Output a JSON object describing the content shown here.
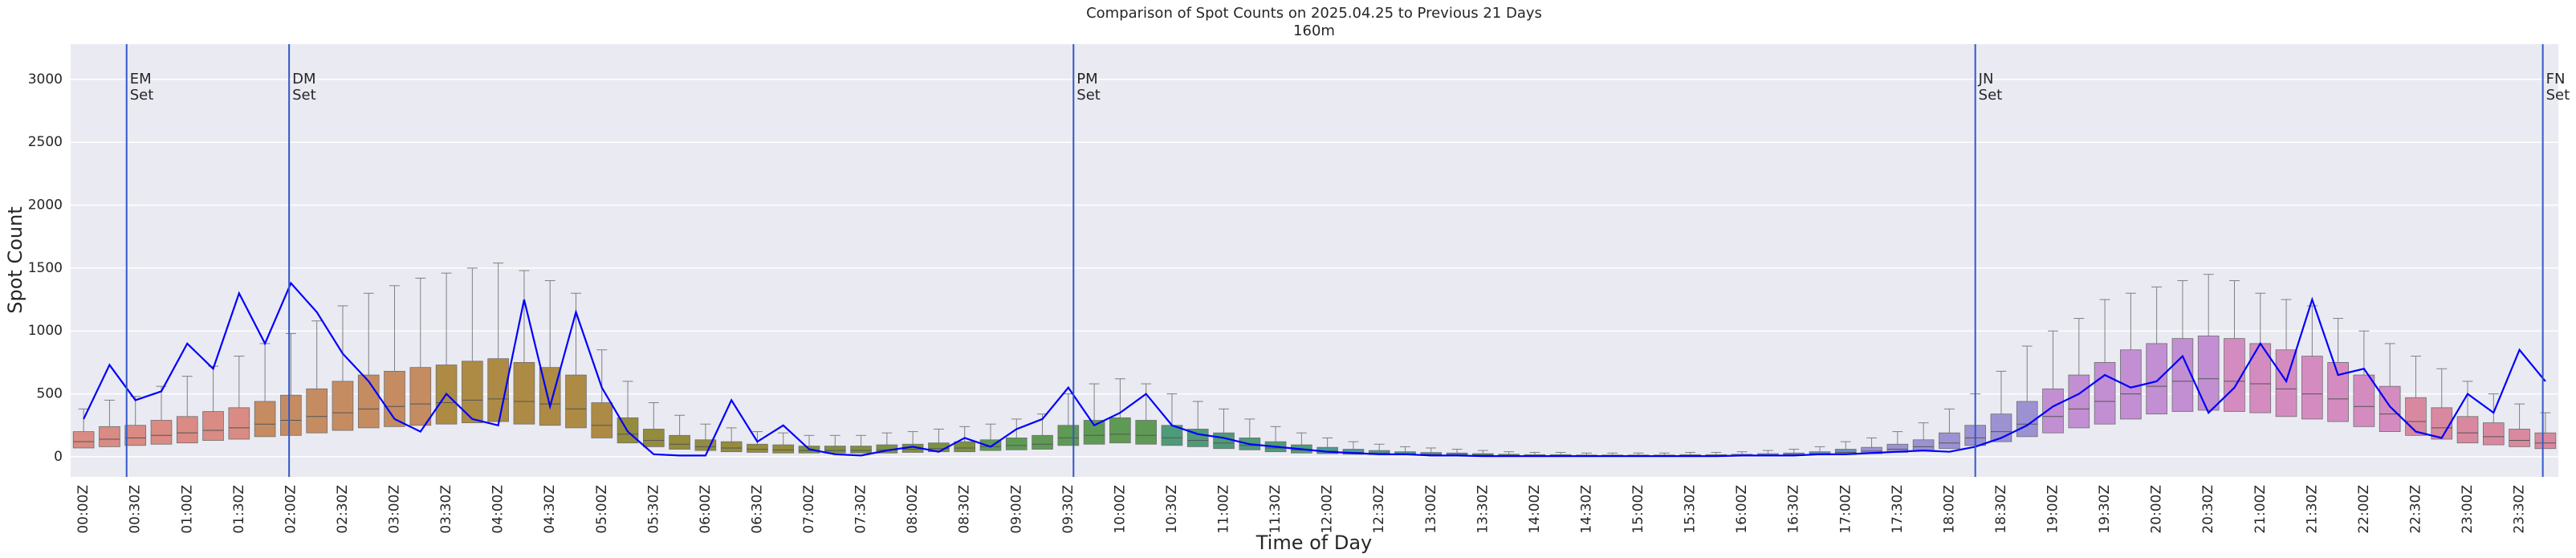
{
  "chart_data": {
    "type": "box",
    "title": "Comparison of Spot Counts on 2025.04.25 to Previous 21 Days",
    "subtitle": "160m",
    "xlabel": "Time of Day",
    "ylabel": "Spot Count",
    "categories": [
      "00:00Z",
      null,
      "00:30Z",
      null,
      "01:00Z",
      null,
      "01:30Z",
      null,
      "02:00Z",
      null,
      "02:30Z",
      null,
      "03:00Z",
      null,
      "03:30Z",
      null,
      "04:00Z",
      null,
      "04:30Z",
      null,
      "05:00Z",
      null,
      "05:30Z",
      null,
      "06:00Z",
      null,
      "06:30Z",
      null,
      "07:00Z",
      null,
      "07:30Z",
      null,
      "08:00Z",
      null,
      "08:30Z",
      null,
      "09:00Z",
      null,
      "09:30Z",
      null,
      "10:00Z",
      null,
      "10:30Z",
      null,
      "11:00Z",
      null,
      "11:30Z",
      null,
      "12:00Z",
      null,
      "12:30Z",
      null,
      "13:00Z",
      null,
      "13:30Z",
      null,
      "14:00Z",
      null,
      "14:30Z",
      null,
      "15:00Z",
      null,
      "15:30Z",
      null,
      "16:00Z",
      null,
      "16:30Z",
      null,
      "17:00Z",
      null,
      "17:30Z",
      null,
      "18:00Z",
      null,
      "18:30Z",
      null,
      "19:00Z",
      null,
      "19:30Z",
      null,
      "20:00Z",
      null,
      "20:30Z",
      null,
      "21:00Z",
      null,
      "21:30Z",
      null,
      "22:00Z",
      null,
      "22:30Z",
      null,
      "23:00Z",
      null,
      "23:30Z",
      null
    ],
    "boxes": {
      "q1": [
        70,
        80,
        90,
        100,
        110,
        130,
        140,
        160,
        170,
        190,
        210,
        230,
        240,
        250,
        260,
        270,
        280,
        260,
        250,
        230,
        150,
        110,
        80,
        60,
        50,
        40,
        35,
        30,
        30,
        30,
        30,
        30,
        35,
        40,
        40,
        50,
        55,
        60,
        90,
        100,
        110,
        100,
        90,
        80,
        65,
        55,
        40,
        30,
        25,
        20,
        18,
        15,
        12,
        10,
        9,
        7,
        6,
        6,
        5,
        5,
        5,
        5,
        6,
        6,
        7,
        9,
        10,
        15,
        20,
        25,
        35,
        50,
        65,
        90,
        120,
        160,
        190,
        230,
        260,
        300,
        340,
        360,
        370,
        360,
        350,
        320,
        300,
        280,
        240,
        200,
        170,
        140,
        110,
        95,
        80,
        65
      ],
      "median": [
        120,
        140,
        150,
        170,
        190,
        210,
        230,
        260,
        290,
        320,
        350,
        380,
        400,
        420,
        430,
        450,
        460,
        440,
        420,
        380,
        250,
        180,
        130,
        100,
        80,
        70,
        60,
        55,
        50,
        50,
        50,
        55,
        60,
        65,
        70,
        80,
        90,
        100,
        150,
        170,
        180,
        170,
        150,
        130,
        110,
        90,
        70,
        55,
        45,
        35,
        30,
        25,
        20,
        18,
        15,
        12,
        10,
        10,
        8,
        8,
        8,
        8,
        10,
        10,
        12,
        15,
        18,
        25,
        35,
        45,
        60,
        80,
        110,
        150,
        200,
        260,
        320,
        380,
        440,
        500,
        560,
        600,
        620,
        600,
        580,
        540,
        500,
        460,
        400,
        340,
        280,
        230,
        190,
        160,
        130,
        110
      ],
      "q3": [
        200,
        240,
        250,
        290,
        320,
        360,
        390,
        440,
        490,
        540,
        600,
        650,
        680,
        710,
        730,
        760,
        780,
        750,
        710,
        650,
        430,
        310,
        220,
        170,
        135,
        120,
        100,
        95,
        85,
        85,
        85,
        95,
        100,
        110,
        120,
        135,
        150,
        170,
        250,
        290,
        310,
        290,
        250,
        220,
        190,
        150,
        120,
        95,
        75,
        60,
        50,
        40,
        34,
        30,
        25,
        20,
        17,
        17,
        14,
        14,
        14,
        14,
        17,
        17,
        20,
        25,
        30,
        40,
        60,
        75,
        100,
        135,
        190,
        250,
        340,
        440,
        540,
        650,
        750,
        850,
        900,
        940,
        960,
        940,
        900,
        850,
        800,
        750,
        650,
        560,
        470,
        390,
        320,
        270,
        220,
        190
      ],
      "whishi": [
        380,
        450,
        480,
        560,
        640,
        720,
        800,
        900,
        980,
        1080,
        1200,
        1300,
        1360,
        1420,
        1460,
        1500,
        1540,
        1480,
        1400,
        1300,
        850,
        600,
        430,
        330,
        260,
        230,
        200,
        190,
        170,
        170,
        170,
        190,
        200,
        220,
        240,
        260,
        300,
        340,
        500,
        580,
        620,
        580,
        500,
        440,
        380,
        300,
        240,
        190,
        150,
        120,
        100,
        80,
        70,
        60,
        50,
        40,
        35,
        35,
        30,
        30,
        30,
        30,
        35,
        35,
        40,
        50,
        60,
        80,
        120,
        150,
        200,
        270,
        380,
        500,
        680,
        880,
        1000,
        1100,
        1250,
        1300,
        1350,
        1400,
        1450,
        1400,
        1300,
        1250,
        1200,
        1100,
        1000,
        900,
        800,
        700,
        600,
        500,
        420,
        350
      ]
    },
    "palette": [
      "#d98b84",
      "#c58c62",
      "#ad8b45",
      "#948c3d",
      "#7d9142",
      "#5f9a55",
      "#4f9a78",
      "#4c9a95",
      "#5296a6",
      "#6c8fc4",
      "#9c92d2",
      "#c28fd2",
      "#d48cc0",
      "#d889a0"
    ],
    "line": {
      "color": "#0000ff",
      "values": [
        300,
        730,
        450,
        520,
        900,
        700,
        1300,
        900,
        1380,
        1150,
        820,
        600,
        300,
        200,
        500,
        300,
        250,
        1250,
        400,
        1150,
        550,
        200,
        20,
        10,
        10,
        450,
        120,
        250,
        60,
        20,
        10,
        50,
        80,
        40,
        150,
        80,
        220,
        300,
        550,
        250,
        350,
        500,
        250,
        180,
        150,
        100,
        80,
        60,
        40,
        30,
        20,
        20,
        10,
        10,
        5,
        5,
        5,
        5,
        5,
        5,
        5,
        5,
        5,
        5,
        10,
        10,
        10,
        20,
        20,
        30,
        40,
        50,
        40,
        80,
        150,
        250,
        400,
        500,
        650,
        550,
        600,
        800,
        350,
        550,
        900,
        600,
        1250,
        650,
        700,
        400,
        200,
        150,
        500,
        350,
        850,
        600
      ]
    },
    "annotations": [
      {
        "lines": [
          "EM",
          "Set"
        ],
        "x": 1.66
      },
      {
        "lines": [
          "DM",
          "Set"
        ],
        "x": 7.93
      },
      {
        "lines": [
          "PM",
          "Set"
        ],
        "x": 38.2
      },
      {
        "lines": [
          "JN",
          "Set"
        ],
        "x": 73.0
      },
      {
        "lines": [
          "FN",
          "Set"
        ],
        "x": 94.9
      }
    ],
    "annotation_color": "#3358c8",
    "ylim": [
      -160,
      3280
    ],
    "yticks": [
      0,
      500,
      1000,
      1500,
      2000,
      2500,
      3000
    ],
    "grid": true
  }
}
